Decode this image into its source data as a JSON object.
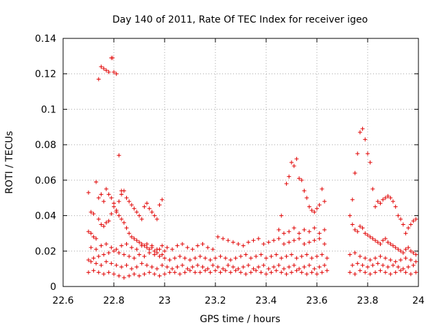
{
  "chart_data": {
    "type": "scatter",
    "title": "Day 140 of 2011, Rate Of TEC Index for receiver igeo",
    "xlabel": "GPS time / hours",
    "ylabel": "ROTI / TECUs",
    "xlim": [
      22.6,
      24
    ],
    "ylim": [
      0,
      0.14
    ],
    "xticks": [
      "22.6",
      "22.8",
      "23",
      "23.2",
      "23.4",
      "23.6",
      "23.8",
      "24"
    ],
    "yticks": [
      "0",
      "0.02",
      "0.04",
      "0.06",
      "0.08",
      "0.1",
      "0.12",
      "0.14"
    ],
    "grid": true,
    "marker": "+",
    "color": "#e00000",
    "series": [
      {
        "x": [
          22.74,
          22.75,
          22.76,
          22.77,
          22.78,
          22.79,
          22.795,
          22.8,
          22.81,
          22.82,
          22.83,
          22.7,
          22.71,
          22.72,
          22.73,
          22.74,
          22.75,
          22.76,
          22.77,
          22.78,
          22.79,
          22.8,
          22.81,
          22.82,
          22.83,
          22.84,
          22.85,
          22.86,
          22.87,
          22.88,
          22.89,
          22.9,
          22.91,
          22.92,
          22.93,
          22.94,
          22.95,
          22.96,
          22.97,
          22.98,
          22.99,
          23.0,
          22.7,
          22.71,
          22.72,
          22.73,
          22.74,
          22.75,
          22.76,
          22.77,
          22.78,
          22.79,
          22.8,
          22.81,
          22.82,
          22.83,
          22.84,
          22.85,
          22.86,
          22.87,
          22.88,
          22.89,
          22.9,
          22.91,
          22.92,
          22.93,
          22.94,
          22.95,
          22.96,
          22.97,
          22.98,
          22.99,
          22.7,
          22.72,
          22.74,
          22.76,
          22.78,
          22.8,
          22.82,
          22.84,
          22.86,
          22.88,
          22.9,
          22.92,
          22.94,
          22.96,
          22.98,
          23.0,
          23.02,
          23.04,
          23.06,
          23.08,
          23.1,
          23.12,
          23.14,
          23.16,
          23.18,
          23.2,
          23.22,
          23.24,
          23.26,
          23.28,
          23.3,
          23.32,
          23.34,
          23.36,
          23.38,
          23.4,
          23.42,
          23.44,
          23.46,
          23.48,
          23.5,
          23.52,
          23.54,
          23.56,
          23.58,
          23.6,
          23.62,
          23.64,
          22.71,
          22.73,
          22.75,
          22.77,
          22.79,
          22.81,
          22.83,
          22.85,
          22.87,
          22.89,
          22.91,
          22.93,
          22.95,
          22.97,
          22.99,
          23.01,
          23.03,
          23.05,
          23.07,
          23.09,
          23.11,
          23.13,
          23.15,
          23.17,
          23.19,
          23.21,
          23.23,
          23.25,
          23.27,
          23.29,
          23.31,
          23.33,
          23.35,
          23.37,
          23.39,
          23.41,
          23.43,
          23.45,
          23.47,
          23.49,
          23.51,
          23.53,
          23.55,
          23.57,
          23.59,
          23.61,
          23.63,
          22.7,
          22.72,
          22.74,
          22.76,
          22.78,
          22.8,
          22.82,
          22.84,
          22.86,
          22.88,
          22.9,
          22.92,
          22.94,
          22.96,
          22.98,
          23.0,
          23.02,
          23.04,
          23.06,
          23.08,
          23.1,
          23.12,
          23.14,
          23.16,
          23.18,
          23.2,
          23.22,
          23.24,
          23.26,
          23.28,
          23.3,
          23.32,
          23.34,
          23.36,
          23.38,
          23.4,
          23.42,
          23.44,
          23.46,
          23.48,
          23.5,
          23.52,
          23.54,
          23.56,
          23.58,
          23.6,
          23.62,
          23.64,
          22.71,
          22.73,
          22.75,
          22.77,
          22.79,
          22.81,
          22.83,
          22.85,
          22.87,
          22.89,
          22.91,
          22.93,
          22.95,
          22.97,
          22.99,
          23.01,
          23.03,
          23.05,
          23.07,
          23.09,
          23.11,
          23.13,
          23.15,
          23.17,
          23.19,
          23.21,
          23.23,
          23.25,
          23.27,
          23.29,
          23.31,
          23.33,
          23.35,
          23.37,
          23.39,
          23.41,
          23.43,
          23.45,
          23.47,
          23.49,
          23.51,
          23.53,
          23.55,
          23.57,
          23.59,
          23.61,
          23.63,
          23.46,
          23.48,
          23.49,
          23.5,
          23.51,
          23.52,
          23.53,
          23.54,
          23.55,
          23.56,
          23.57,
          23.58,
          23.59,
          23.6,
          23.61,
          23.62,
          23.63,
          23.45,
          23.47,
          23.49,
          23.51,
          23.53,
          23.55,
          23.57,
          23.59,
          23.61,
          23.63,
          23.74,
          23.75,
          23.76,
          23.77,
          23.78,
          23.79,
          23.8,
          23.81,
          23.82,
          23.83,
          23.84,
          23.85,
          23.86,
          23.87,
          23.88,
          23.89,
          23.9,
          23.91,
          23.92,
          23.93,
          23.94,
          23.95,
          23.96,
          23.97,
          23.98,
          23.99,
          23.73,
          23.74,
          23.75,
          23.76,
          23.77,
          23.78,
          23.79,
          23.8,
          23.81,
          23.82,
          23.83,
          23.84,
          23.85,
          23.86,
          23.87,
          23.88,
          23.89,
          23.9,
          23.91,
          23.92,
          23.93,
          23.94,
          23.95,
          23.96,
          23.97,
          23.98,
          23.99,
          23.73,
          23.75,
          23.77,
          23.79,
          23.81,
          23.83,
          23.85,
          23.87,
          23.89,
          23.91,
          23.93,
          23.95,
          23.97,
          23.99,
          23.74,
          23.76,
          23.78,
          23.8,
          23.82,
          23.84,
          23.86,
          23.88,
          23.9,
          23.92,
          23.94,
          23.96,
          23.98,
          23.73,
          23.75,
          23.77,
          23.79,
          23.81,
          23.83,
          23.85,
          23.87,
          23.89,
          23.91,
          23.93,
          23.95,
          23.97,
          23.99
        ],
        "y": [
          0.117,
          0.124,
          0.123,
          0.122,
          0.121,
          0.129,
          0.129,
          0.121,
          0.12,
          0.074,
          0.054,
          0.053,
          0.042,
          0.041,
          0.059,
          0.038,
          0.035,
          0.034,
          0.036,
          0.037,
          0.041,
          0.045,
          0.043,
          0.04,
          0.038,
          0.036,
          0.033,
          0.03,
          0.028,
          0.027,
          0.026,
          0.025,
          0.024,
          0.023,
          0.022,
          0.021,
          0.023,
          0.02,
          0.019,
          0.021,
          0.018,
          0.02,
          0.031,
          0.03,
          0.028,
          0.027,
          0.05,
          0.052,
          0.048,
          0.055,
          0.052,
          0.05,
          0.047,
          0.042,
          0.048,
          0.052,
          0.054,
          0.05,
          0.048,
          0.046,
          0.044,
          0.042,
          0.04,
          0.038,
          0.045,
          0.047,
          0.044,
          0.042,
          0.04,
          0.038,
          0.046,
          0.049,
          0.008,
          0.009,
          0.008,
          0.007,
          0.008,
          0.007,
          0.006,
          0.005,
          0.006,
          0.007,
          0.006,
          0.007,
          0.008,
          0.007,
          0.006,
          0.007,
          0.008,
          0.008,
          0.007,
          0.008,
          0.009,
          0.008,
          0.008,
          0.009,
          0.008,
          0.009,
          0.008,
          0.009,
          0.008,
          0.009,
          0.008,
          0.007,
          0.008,
          0.009,
          0.008,
          0.007,
          0.008,
          0.009,
          0.008,
          0.007,
          0.008,
          0.009,
          0.008,
          0.007,
          0.008,
          0.007,
          0.008,
          0.009,
          0.014,
          0.013,
          0.012,
          0.014,
          0.013,
          0.012,
          0.011,
          0.012,
          0.01,
          0.011,
          0.013,
          0.012,
          0.011,
          0.01,
          0.012,
          0.011,
          0.01,
          0.011,
          0.012,
          0.01,
          0.011,
          0.012,
          0.011,
          0.01,
          0.012,
          0.011,
          0.01,
          0.012,
          0.011,
          0.01,
          0.011,
          0.012,
          0.01,
          0.011,
          0.012,
          0.01,
          0.011,
          0.012,
          0.01,
          0.011,
          0.012,
          0.01,
          0.011,
          0.012,
          0.01,
          0.011,
          0.012,
          0.015,
          0.016,
          0.017,
          0.018,
          0.019,
          0.02,
          0.019,
          0.018,
          0.017,
          0.016,
          0.018,
          0.017,
          0.019,
          0.018,
          0.017,
          0.016,
          0.015,
          0.016,
          0.017,
          0.016,
          0.015,
          0.016,
          0.017,
          0.016,
          0.015,
          0.016,
          0.017,
          0.016,
          0.015,
          0.016,
          0.017,
          0.018,
          0.016,
          0.017,
          0.018,
          0.016,
          0.017,
          0.018,
          0.016,
          0.017,
          0.018,
          0.016,
          0.017,
          0.018,
          0.016,
          0.017,
          0.018,
          0.016,
          0.022,
          0.021,
          0.023,
          0.024,
          0.022,
          0.021,
          0.023,
          0.024,
          0.022,
          0.021,
          0.023,
          0.024,
          0.022,
          0.021,
          0.023,
          0.022,
          0.021,
          0.023,
          0.024,
          0.022,
          0.021,
          0.023,
          0.024,
          0.022,
          0.021,
          0.028,
          0.027,
          0.026,
          0.025,
          0.024,
          0.023,
          0.025,
          0.026,
          0.027,
          0.024,
          0.025,
          0.026,
          0.027,
          0.024,
          0.025,
          0.026,
          0.027,
          0.024,
          0.025,
          0.026,
          0.027,
          0.024,
          0.04,
          0.058,
          0.062,
          0.07,
          0.068,
          0.072,
          0.061,
          0.06,
          0.054,
          0.05,
          0.045,
          0.043,
          0.042,
          0.044,
          0.046,
          0.055,
          0.048,
          0.032,
          0.03,
          0.031,
          0.033,
          0.03,
          0.032,
          0.031,
          0.033,
          0.03,
          0.032,
          0.049,
          0.064,
          0.075,
          0.087,
          0.089,
          0.083,
          0.075,
          0.07,
          0.055,
          0.045,
          0.048,
          0.047,
          0.049,
          0.05,
          0.051,
          0.05,
          0.048,
          0.045,
          0.04,
          0.038,
          0.035,
          0.03,
          0.033,
          0.035,
          0.037,
          0.038,
          0.04,
          0.035,
          0.032,
          0.031,
          0.034,
          0.033,
          0.03,
          0.029,
          0.028,
          0.027,
          0.026,
          0.025,
          0.024,
          0.026,
          0.027,
          0.025,
          0.024,
          0.023,
          0.022,
          0.021,
          0.02,
          0.019,
          0.021,
          0.022,
          0.02,
          0.019,
          0.018,
          0.018,
          0.019,
          0.017,
          0.016,
          0.015,
          0.016,
          0.017,
          0.016,
          0.015,
          0.014,
          0.015,
          0.016,
          0.015,
          0.014,
          0.012,
          0.013,
          0.012,
          0.011,
          0.012,
          0.013,
          0.012,
          0.011,
          0.012,
          0.011,
          0.01,
          0.011,
          0.012,
          0.008,
          0.007,
          0.009,
          0.008,
          0.007,
          0.008,
          0.009,
          0.008,
          0.007,
          0.008,
          0.009,
          0.008,
          0.007,
          0.008
        ]
      }
    ]
  }
}
